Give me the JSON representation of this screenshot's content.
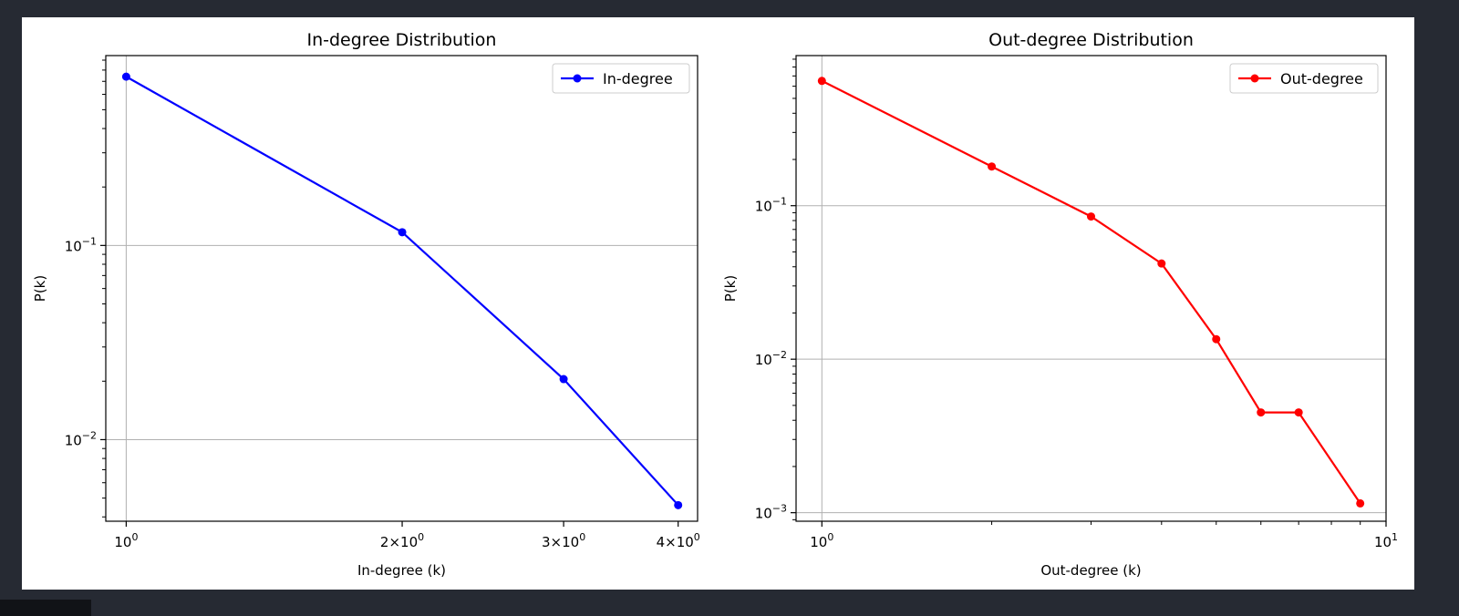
{
  "chart_data": [
    {
      "id": "in",
      "type": "line",
      "title": "In-degree Distribution",
      "xlabel": "In-degree (k)",
      "ylabel": "P(k)",
      "xscale": "log",
      "yscale": "log",
      "xlim": [
        0.95,
        4.2
      ],
      "ylim": [
        0.0038,
        0.95
      ],
      "grid": "major",
      "legend": "top-right",
      "x_ticks": [
        {
          "value": 1,
          "base": "10",
          "exp": "0",
          "coef": ""
        },
        {
          "value": 2,
          "base": "10",
          "exp": "0",
          "coef": "2"
        },
        {
          "value": 3,
          "base": "10",
          "exp": "0",
          "coef": "3"
        },
        {
          "value": 4,
          "base": "10",
          "exp": "0",
          "coef": "4"
        }
      ],
      "y_ticks": [
        {
          "value": 0.1,
          "base": "10",
          "exp": "−1"
        },
        {
          "value": 0.01,
          "base": "10",
          "exp": "−2"
        }
      ],
      "series": [
        {
          "name": "In-degree",
          "color": "#0000ff",
          "x": [
            1,
            2,
            3,
            4
          ],
          "y": [
            0.74,
            0.117,
            0.0205,
            0.0046
          ]
        }
      ]
    },
    {
      "id": "out",
      "type": "line",
      "title": "Out-degree Distribution",
      "xlabel": "Out-degree (k)",
      "ylabel": "P(k)",
      "xscale": "log",
      "yscale": "log",
      "xlim": [
        0.9,
        10
      ],
      "ylim": [
        0.00088,
        0.95
      ],
      "grid": "major",
      "legend": "top-right",
      "x_ticks": [
        {
          "value": 1,
          "base": "10",
          "exp": "0",
          "coef": ""
        },
        {
          "value": 10,
          "base": "10",
          "exp": "1",
          "coef": ""
        }
      ],
      "y_ticks": [
        {
          "value": 0.1,
          "base": "10",
          "exp": "−1"
        },
        {
          "value": 0.01,
          "base": "10",
          "exp": "−2"
        },
        {
          "value": 0.001,
          "base": "10",
          "exp": "−3"
        }
      ],
      "series": [
        {
          "name": "Out-degree",
          "color": "#ff0000",
          "x": [
            1,
            2,
            3,
            4,
            5,
            6,
            7,
            9
          ],
          "y": [
            0.65,
            0.18,
            0.085,
            0.042,
            0.0135,
            0.0045,
            0.0045,
            0.00115
          ]
        }
      ]
    }
  ]
}
